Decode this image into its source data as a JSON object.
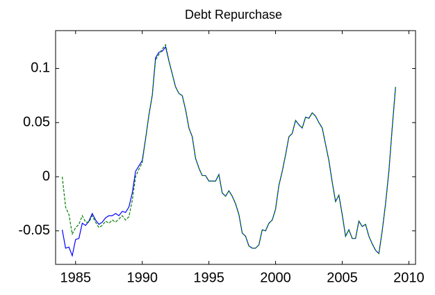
{
  "chart_data": {
    "type": "line",
    "title": "Debt Repurchase",
    "x": [
      1984,
      1984.25,
      1984.5,
      1984.75,
      1985,
      1985.25,
      1985.5,
      1985.75,
      1986,
      1986.25,
      1986.5,
      1986.75,
      1987,
      1987.25,
      1987.5,
      1987.75,
      1988,
      1988.25,
      1988.5,
      1988.75,
      1989,
      1989.25,
      1989.5,
      1989.75,
      1990,
      1990.25,
      1990.5,
      1990.75,
      1991,
      1991.25,
      1991.5,
      1991.75,
      1992,
      1992.25,
      1992.5,
      1992.75,
      1993,
      1993.25,
      1993.5,
      1993.75,
      1994,
      1994.25,
      1994.5,
      1994.75,
      1995,
      1995.25,
      1995.5,
      1995.75,
      1996,
      1996.25,
      1996.5,
      1996.75,
      1997,
      1997.25,
      1997.5,
      1997.75,
      1998,
      1998.25,
      1998.5,
      1998.75,
      1999,
      1999.25,
      1999.5,
      1999.75,
      2000,
      2000.25,
      2000.5,
      2000.75,
      2001,
      2001.25,
      2001.5,
      2001.75,
      2002,
      2002.25,
      2002.5,
      2002.75,
      2003,
      2003.25,
      2003.5,
      2003.75,
      2004,
      2004.25,
      2004.5,
      2004.75,
      2005,
      2005.25,
      2005.5,
      2005.75,
      2006,
      2006.25,
      2006.5,
      2006.75,
      2007,
      2007.25,
      2007.5,
      2007.75,
      2008,
      2008.25,
      2008.5,
      2008.75,
      2009
    ],
    "series": [
      {
        "color": "#0000ff",
        "style": "solid",
        "values": [
          -0.049,
          -0.066,
          -0.065,
          -0.073,
          -0.058,
          -0.057,
          -0.043,
          -0.045,
          -0.041,
          -0.034,
          -0.04,
          -0.044,
          -0.042,
          -0.038,
          -0.036,
          -0.036,
          -0.034,
          -0.036,
          -0.032,
          -0.033,
          -0.028,
          -0.015,
          0.005,
          0.01,
          0.015,
          0.035,
          0.057,
          0.075,
          0.11,
          0.115,
          0.116,
          0.12,
          0.107,
          0.095,
          0.083,
          0.077,
          0.075,
          0.062,
          0.045,
          0.037,
          0.017,
          0.008,
          0.001,
          0.001,
          -0.004,
          -0.004,
          -0.004,
          0.002,
          -0.015,
          -0.018,
          -0.013,
          -0.018,
          -0.025,
          -0.035,
          -0.052,
          -0.055,
          -0.064,
          -0.066,
          -0.066,
          -0.063,
          -0.049,
          -0.05,
          -0.043,
          -0.04,
          -0.03,
          -0.008,
          0.005,
          0.02,
          0.037,
          0.04,
          0.052,
          0.048,
          0.045,
          0.055,
          0.054,
          0.059,
          0.056,
          0.05,
          0.045,
          0.03,
          0.015,
          -0.005,
          -0.023,
          -0.017,
          -0.035,
          -0.055,
          -0.049,
          -0.057,
          -0.057,
          -0.041,
          -0.046,
          -0.044,
          -0.055,
          -0.062,
          -0.068,
          -0.071,
          -0.05,
          -0.025,
          0.005,
          0.045,
          0.083
        ]
      },
      {
        "color": "#008000",
        "style": "dashed",
        "values": [
          0.0,
          -0.028,
          -0.035,
          -0.053,
          -0.047,
          -0.044,
          -0.036,
          -0.042,
          -0.042,
          -0.036,
          -0.042,
          -0.047,
          -0.045,
          -0.041,
          -0.043,
          -0.04,
          -0.042,
          -0.039,
          -0.036,
          -0.04,
          -0.037,
          -0.022,
          0.0,
          0.007,
          0.013,
          0.035,
          0.057,
          0.075,
          0.108,
          0.113,
          0.118,
          0.122,
          0.107,
          0.095,
          0.083,
          0.077,
          0.075,
          0.062,
          0.045,
          0.037,
          0.017,
          0.008,
          0.001,
          0.001,
          -0.004,
          -0.004,
          -0.004,
          0.002,
          -0.015,
          -0.018,
          -0.013,
          -0.018,
          -0.025,
          -0.035,
          -0.052,
          -0.055,
          -0.064,
          -0.066,
          -0.066,
          -0.063,
          -0.049,
          -0.05,
          -0.043,
          -0.04,
          -0.03,
          -0.008,
          0.005,
          0.02,
          0.037,
          0.04,
          0.052,
          0.048,
          0.045,
          0.055,
          0.054,
          0.059,
          0.056,
          0.05,
          0.045,
          0.03,
          0.015,
          -0.005,
          -0.023,
          -0.017,
          -0.035,
          -0.055,
          -0.049,
          -0.057,
          -0.057,
          -0.041,
          -0.046,
          -0.044,
          -0.055,
          -0.062,
          -0.068,
          -0.071,
          -0.05,
          -0.025,
          0.005,
          0.045,
          0.083
        ]
      }
    ],
    "xlim": [
      1983.5,
      2010.5
    ],
    "xticks": [
      1985,
      1990,
      1995,
      2000,
      2005,
      2010
    ],
    "ylim": [
      -0.081,
      0.135
    ],
    "yticks": [
      -0.05,
      0,
      0.05,
      0.1
    ],
    "grid": false
  }
}
